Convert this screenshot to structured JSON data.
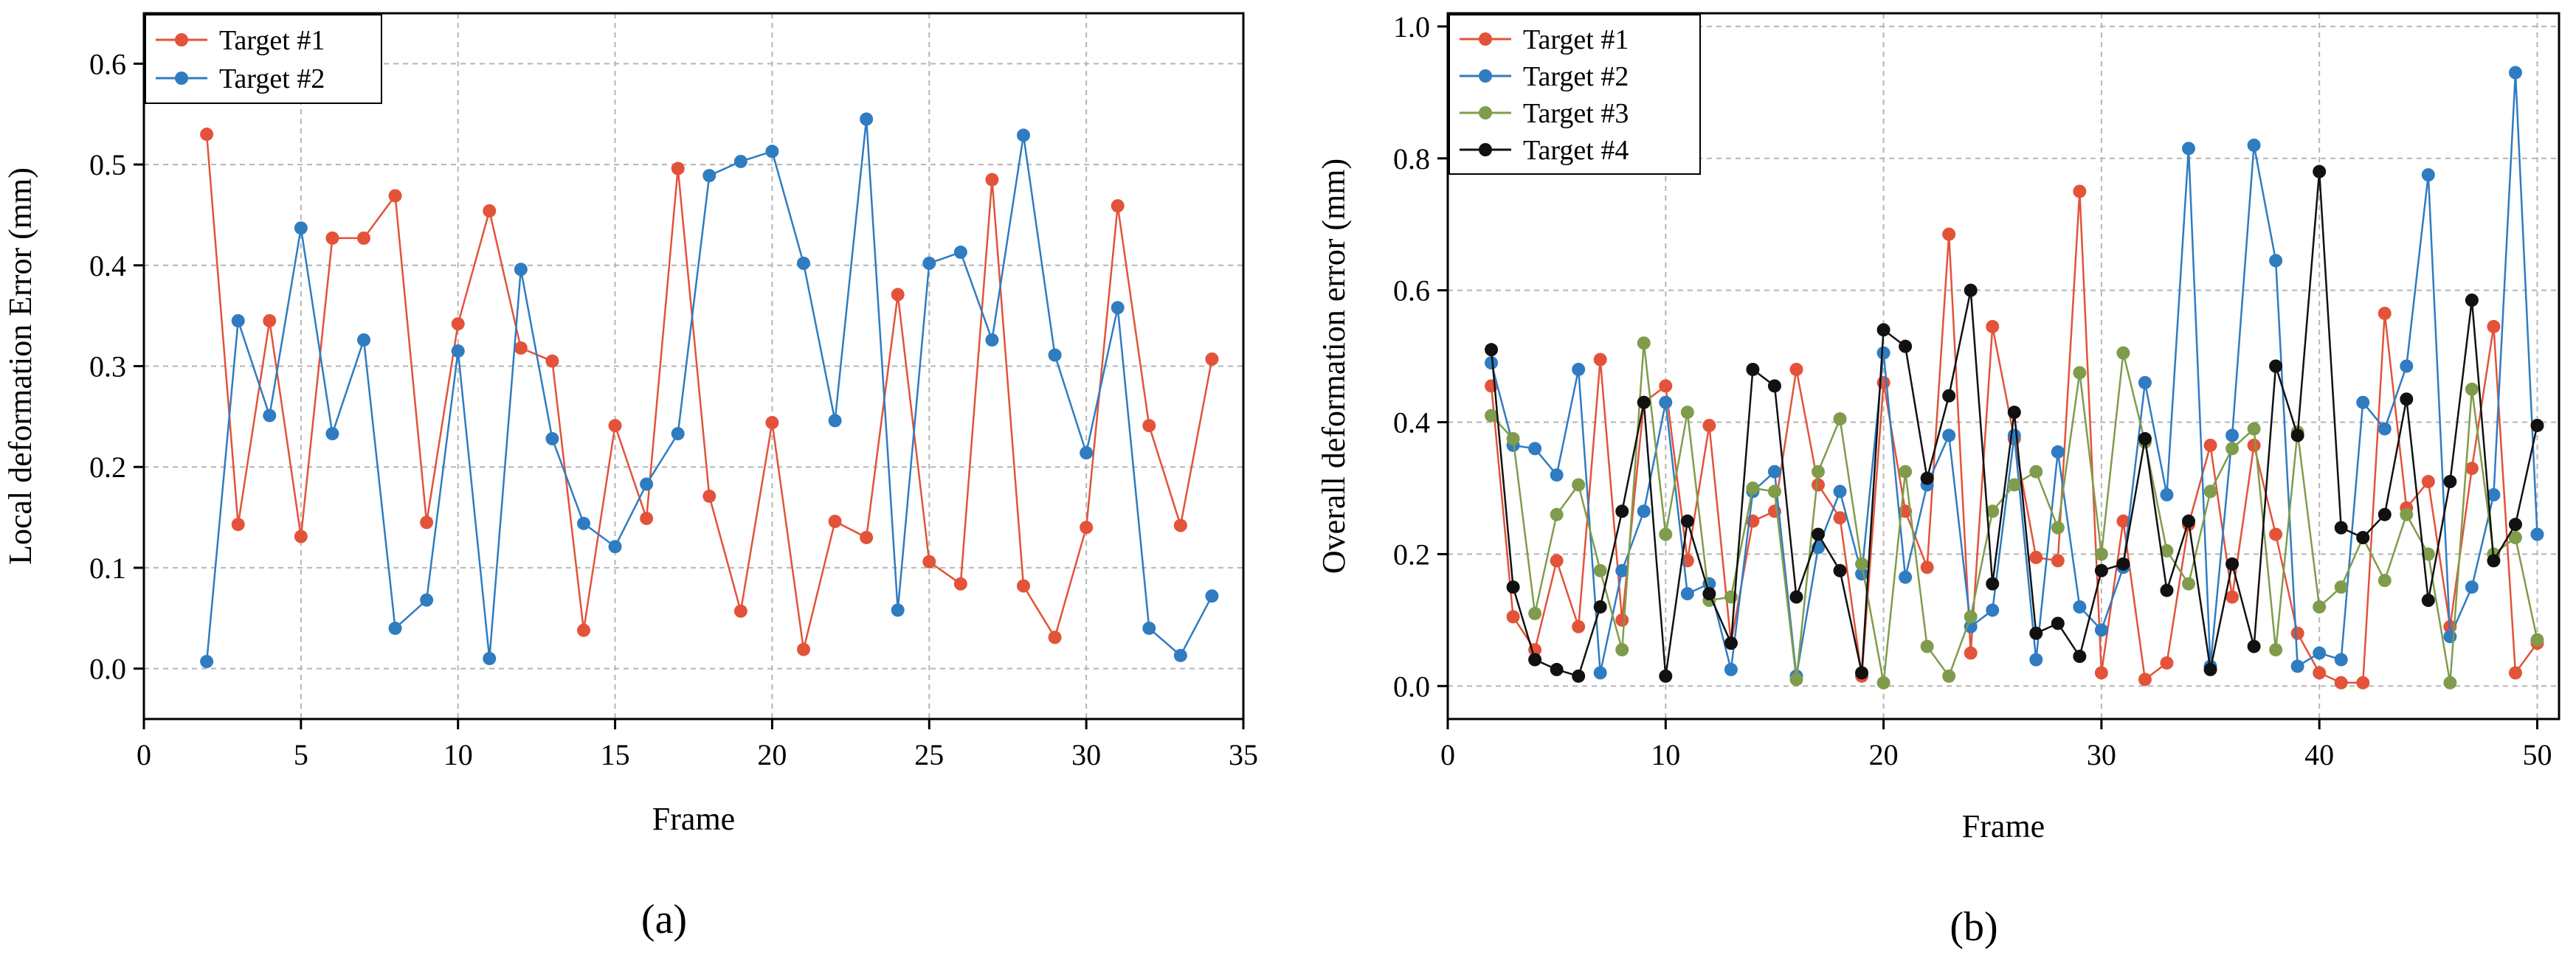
{
  "figure": {
    "colors": {
      "target1": "#e2533a",
      "target2": "#2f7cc1",
      "target3": "#7f9c4c",
      "target4": "#111111",
      "grid": "#b5b5b5",
      "axis": "#000000"
    }
  },
  "chart_data": [
    {
      "type": "line",
      "panel_label": "(a)",
      "title": "",
      "xlabel": "Frame",
      "ylabel": "Local deformation Error (mm)",
      "xlim": [
        0,
        35
      ],
      "ylim": [
        -0.05,
        0.65
      ],
      "xticks": [
        0,
        5,
        10,
        15,
        20,
        25,
        30,
        35
      ],
      "yticks": [
        0.0,
        0.1,
        0.2,
        0.3,
        0.4,
        0.5,
        0.6
      ],
      "ytick_labels": [
        "0.0",
        "0.1",
        "0.2",
        "0.3",
        "0.4",
        "0.5",
        "0.6"
      ],
      "grid": true,
      "legend_position": "top-left",
      "x": [
        2,
        3,
        4,
        5,
        6,
        7,
        8,
        9,
        10,
        11,
        12,
        13,
        14,
        15,
        16,
        17,
        18,
        19,
        20,
        21,
        22,
        23,
        24,
        25,
        26,
        27,
        28,
        29,
        30,
        31,
        32,
        33,
        34
      ],
      "series": [
        {
          "name": "Target #1",
          "color_key": "target1",
          "values": [
            0.53,
            0.143,
            0.345,
            0.131,
            0.427,
            0.427,
            0.469,
            0.145,
            0.342,
            0.454,
            0.318,
            0.305,
            0.038,
            0.241,
            0.149,
            0.496,
            0.171,
            0.057,
            0.244,
            0.019,
            0.146,
            0.13,
            0.371,
            0.106,
            0.084,
            0.485,
            0.082,
            0.031,
            0.14,
            0.459,
            0.241,
            0.142,
            0.307
          ]
        },
        {
          "name": "Target #2",
          "color_key": "target2",
          "values": [
            0.007,
            0.345,
            0.251,
            0.437,
            0.233,
            0.326,
            0.04,
            0.068,
            0.315,
            0.01,
            0.396,
            0.228,
            0.144,
            0.121,
            0.183,
            0.233,
            0.489,
            0.503,
            0.513,
            0.402,
            0.246,
            0.545,
            0.058,
            0.402,
            0.413,
            0.326,
            0.529,
            0.311,
            0.214,
            0.358,
            0.04,
            0.013,
            0.072
          ]
        }
      ]
    },
    {
      "type": "line",
      "panel_label": "(b)",
      "title": "",
      "xlabel": "Frame",
      "ylabel": "Overall deformation error (mm)",
      "xlim": [
        0,
        51
      ],
      "ylim": [
        -0.05,
        1.02
      ],
      "xticks": [
        0,
        10,
        20,
        30,
        40,
        50
      ],
      "yticks": [
        0.0,
        0.2,
        0.4,
        0.6,
        0.8,
        1.0
      ],
      "ytick_labels": [
        "0.0",
        "0.2",
        "0.4",
        "0.6",
        "0.8",
        "1.0"
      ],
      "grid": true,
      "legend_position": "top-left",
      "x": [
        2,
        3,
        4,
        5,
        6,
        7,
        8,
        9,
        10,
        11,
        12,
        13,
        14,
        15,
        16,
        17,
        18,
        19,
        20,
        21,
        22,
        23,
        24,
        25,
        26,
        27,
        28,
        29,
        30,
        31,
        32,
        33,
        34,
        35,
        36,
        37,
        38,
        39,
        40,
        41,
        42,
        43,
        44,
        45,
        46,
        47,
        48,
        49,
        50
      ],
      "series": [
        {
          "name": "Target #1",
          "color_key": "target1",
          "values": [
            0.455,
            0.105,
            0.055,
            0.19,
            0.09,
            0.495,
            0.1,
            0.43,
            0.455,
            0.19,
            0.395,
            0.065,
            0.25,
            0.265,
            0.48,
            0.305,
            0.255,
            0.015,
            0.46,
            0.265,
            0.18,
            0.685,
            0.05,
            0.545,
            0.375,
            0.195,
            0.19,
            0.75,
            0.02,
            0.25,
            0.01,
            0.035,
            0.245,
            0.365,
            0.135,
            0.365,
            0.23,
            0.08,
            0.02,
            0.005,
            0.005,
            0.565,
            0.27,
            0.31,
            0.09,
            0.33,
            0.545,
            0.02,
            0.065
          ]
        },
        {
          "name": "Target #2",
          "color_key": "target2",
          "values": [
            0.49,
            0.365,
            0.36,
            0.32,
            0.48,
            0.02,
            0.175,
            0.265,
            0.43,
            0.14,
            0.155,
            0.025,
            0.295,
            0.325,
            0.015,
            0.21,
            0.295,
            0.17,
            0.505,
            0.165,
            0.305,
            0.38,
            0.09,
            0.115,
            0.38,
            0.04,
            0.355,
            0.12,
            0.085,
            0.18,
            0.46,
            0.29,
            0.815,
            0.03,
            0.38,
            0.82,
            0.645,
            0.03,
            0.05,
            0.04,
            0.43,
            0.39,
            0.485,
            0.775,
            0.075,
            0.15,
            0.29,
            0.93,
            0.23
          ]
        },
        {
          "name": "Target #3",
          "color_key": "target3",
          "values": [
            0.41,
            0.375,
            0.11,
            0.26,
            0.305,
            0.175,
            0.055,
            0.52,
            0.23,
            0.415,
            0.13,
            0.135,
            0.3,
            0.295,
            0.01,
            0.325,
            0.405,
            0.185,
            0.005,
            0.325,
            0.06,
            0.015,
            0.105,
            0.265,
            0.305,
            0.325,
            0.24,
            0.475,
            0.2,
            0.505,
            0.37,
            0.205,
            0.155,
            0.295,
            0.36,
            0.39,
            0.055,
            0.385,
            0.12,
            0.15,
            0.225,
            0.16,
            0.26,
            0.2,
            0.005,
            0.45,
            0.2,
            0.225,
            0.07
          ]
        },
        {
          "name": "Target #4",
          "color_key": "target4",
          "values": [
            0.51,
            0.15,
            0.04,
            0.025,
            0.015,
            0.12,
            0.265,
            0.43,
            0.015,
            0.25,
            0.14,
            0.065,
            0.48,
            0.455,
            0.135,
            0.23,
            0.175,
            0.02,
            0.54,
            0.515,
            0.315,
            0.44,
            0.6,
            0.155,
            0.415,
            0.08,
            0.095,
            0.045,
            0.175,
            0.185,
            0.375,
            0.145,
            0.25,
            0.025,
            0.185,
            0.06,
            0.485,
            0.38,
            0.78,
            0.24,
            0.225,
            0.26,
            0.435,
            0.13,
            0.31,
            0.585,
            0.19,
            0.245,
            0.395
          ]
        }
      ]
    }
  ]
}
